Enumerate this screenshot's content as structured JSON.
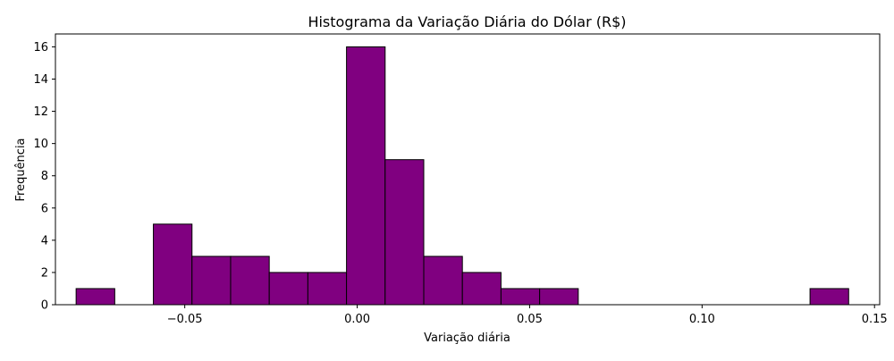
{
  "chart_data": {
    "type": "bar",
    "title": "Histograma da Variação Diária do Dólar (R$)",
    "xlabel": "Variação diária",
    "ylabel": "Frequência",
    "bar_color": "#800080",
    "edge_color": "#000000",
    "xlim": [
      -0.0875,
      0.1515
    ],
    "ylim": [
      0,
      16.8
    ],
    "x_ticks": [
      {
        "value": -0.05,
        "label": "−0.05"
      },
      {
        "value": 0.0,
        "label": "0.00"
      },
      {
        "value": 0.05,
        "label": "0.05"
      },
      {
        "value": 0.1,
        "label": "0.10"
      },
      {
        "value": 0.15,
        "label": "0.15"
      }
    ],
    "y_ticks": [
      {
        "value": 0,
        "label": "0"
      },
      {
        "value": 2,
        "label": "2"
      },
      {
        "value": 4,
        "label": "4"
      },
      {
        "value": 6,
        "label": "6"
      },
      {
        "value": 8,
        "label": "8"
      },
      {
        "value": 10,
        "label": "10"
      },
      {
        "value": 12,
        "label": "12"
      },
      {
        "value": 14,
        "label": "14"
      },
      {
        "value": 16,
        "label": "16"
      }
    ],
    "bins": [
      {
        "x0": -0.0815,
        "x1": -0.0703,
        "count": 1
      },
      {
        "x0": -0.0703,
        "x1": -0.0591,
        "count": 0
      },
      {
        "x0": -0.0591,
        "x1": -0.0479,
        "count": 5
      },
      {
        "x0": -0.0479,
        "x1": -0.0367,
        "count": 3
      },
      {
        "x0": -0.0367,
        "x1": -0.0255,
        "count": 3
      },
      {
        "x0": -0.0255,
        "x1": -0.0143,
        "count": 2
      },
      {
        "x0": -0.0143,
        "x1": -0.0031,
        "count": 2
      },
      {
        "x0": -0.0031,
        "x1": 0.0081,
        "count": 16
      },
      {
        "x0": 0.0081,
        "x1": 0.0193,
        "count": 9
      },
      {
        "x0": 0.0193,
        "x1": 0.0305,
        "count": 3
      },
      {
        "x0": 0.0305,
        "x1": 0.0417,
        "count": 2
      },
      {
        "x0": 0.0417,
        "x1": 0.0529,
        "count": 1
      },
      {
        "x0": 0.0529,
        "x1": 0.0641,
        "count": 1
      },
      {
        "x0": 0.0641,
        "x1": 0.0753,
        "count": 0
      },
      {
        "x0": 0.0753,
        "x1": 0.0865,
        "count": 0
      },
      {
        "x0": 0.0865,
        "x1": 0.0977,
        "count": 0
      },
      {
        "x0": 0.0977,
        "x1": 0.1089,
        "count": 0
      },
      {
        "x0": 0.1089,
        "x1": 0.1201,
        "count": 0
      },
      {
        "x0": 0.1201,
        "x1": 0.1313,
        "count": 0
      },
      {
        "x0": 0.1313,
        "x1": 0.1425,
        "count": 1
      }
    ]
  }
}
